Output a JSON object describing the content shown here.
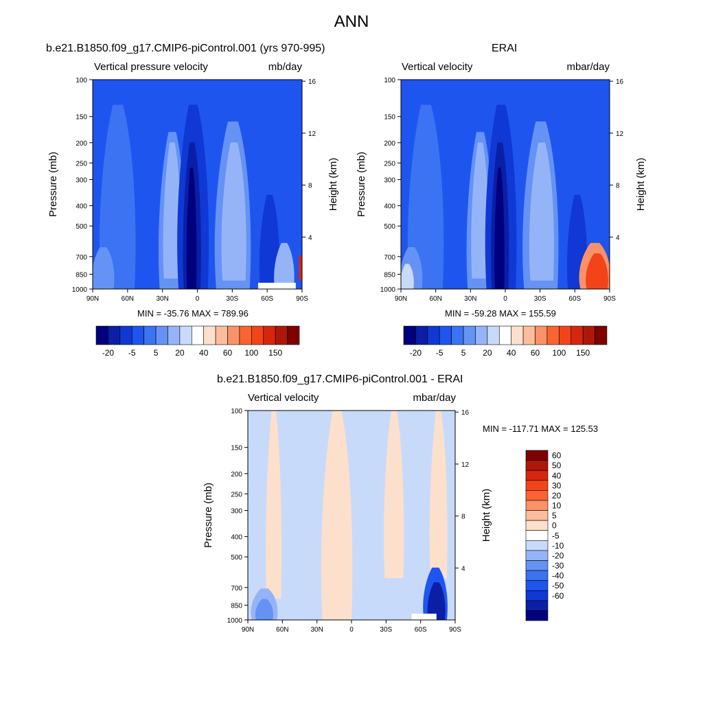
{
  "figure": {
    "title": "ANN"
  },
  "palette": {
    "blue": [
      "#00007f",
      "#0a1fa6",
      "#0f38d4",
      "#1f55ef",
      "#3b73f2",
      "#6592f5",
      "#95b4f8",
      "#c8daf9"
    ],
    "white": "#ffffff",
    "red": [
      "#fde0cc",
      "#fbbd9c",
      "#fa9168",
      "#fa6432",
      "#f34419",
      "#d7260f",
      "#ad180a",
      "#7f0000"
    ]
  },
  "chart_data": [
    {
      "type": "contour",
      "id": "model",
      "title": "b.e21.B1850.f09_g17.CMIP6-piControl.001 (yrs 970-995)",
      "left_subtitle": "Vertical pressure velocity",
      "right_subtitle": "mb/day",
      "ylabel": "Pressure (mb)",
      "y2label": "Height (km)",
      "x_ticks": [
        "90N",
        "60N",
        "30N",
        "0",
        "30S",
        "60S",
        "90S"
      ],
      "y_ticks": [
        "100",
        "150",
        "200",
        "250",
        "300",
        "400",
        "500",
        "700",
        "850",
        "1000"
      ],
      "y2_ticks": [
        "16",
        "12",
        "8",
        "4"
      ],
      "min": -35.76,
      "max": 789.96,
      "minmax_text": "MIN = -35.76  MAX = 789.96",
      "colorbar_labels": [
        "-20",
        "-5",
        "5",
        "20",
        "40",
        "60",
        "100",
        "150"
      ]
    },
    {
      "type": "contour",
      "id": "obs",
      "title": "ERAI",
      "left_subtitle": "Vertical velocity",
      "right_subtitle": "mbar/day",
      "ylabel": "Pressure (mb)",
      "y2label": "Height (km)",
      "x_ticks": [
        "90N",
        "60N",
        "30N",
        "0",
        "30S",
        "60S",
        "90S"
      ],
      "y_ticks": [
        "100",
        "150",
        "200",
        "250",
        "300",
        "400",
        "500",
        "700",
        "850",
        "1000"
      ],
      "y2_ticks": [
        "16",
        "12",
        "8",
        "4"
      ],
      "min": -59.28,
      "max": 155.59,
      "minmax_text": "MIN = -59.28  MAX = 155.59",
      "colorbar_labels": [
        "-20",
        "-5",
        "5",
        "20",
        "40",
        "60",
        "100",
        "150"
      ]
    },
    {
      "type": "contour",
      "id": "diff",
      "title": "b.e21.B1850.f09_g17.CMIP6-piControl.001 - ERAI",
      "left_subtitle": "Vertical velocity",
      "right_subtitle": "mbar/day",
      "ylabel": "Pressure (mb)",
      "y2label": "Height (km)",
      "x_ticks": [
        "90N",
        "60N",
        "30N",
        "0",
        "30S",
        "60S",
        "90S"
      ],
      "y_ticks": [
        "100",
        "150",
        "200",
        "250",
        "300",
        "400",
        "500",
        "700",
        "850",
        "1000"
      ],
      "y2_ticks": [
        "16",
        "12",
        "8",
        "4"
      ],
      "min": -117.71,
      "max": 125.53,
      "minmax_text": "MIN = -117.71  MAX = 125.53",
      "colorbar_labels": [
        "60",
        "50",
        "40",
        "30",
        "20",
        "10",
        "5",
        "0",
        "-5",
        "-10",
        "-20",
        "-30",
        "-40",
        "-50",
        "-60"
      ]
    }
  ]
}
